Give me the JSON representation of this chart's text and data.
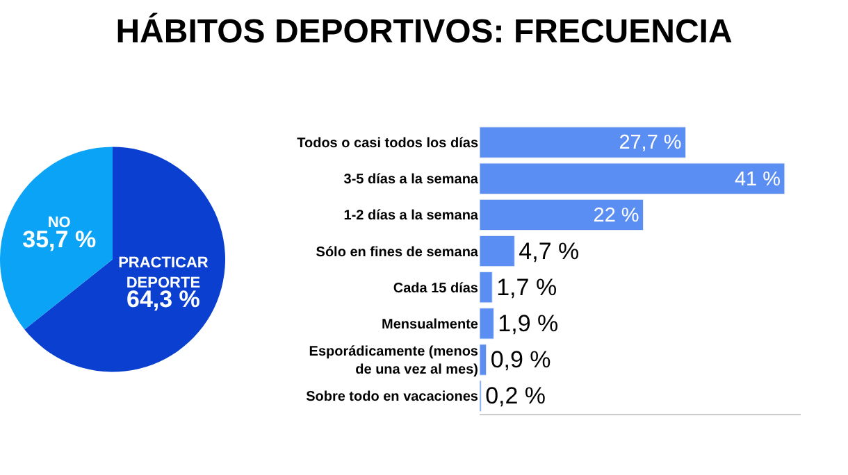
{
  "chart_data": [
    {
      "type": "pie",
      "title": "HÁBITOS DEPORTIVOS: FRECUENCIA",
      "categories": [
        "PRACTICAR DEPORTE",
        "NO"
      ],
      "values": [
        64.3,
        35.7
      ],
      "colors": [
        "#0a3fcf",
        "#0aa3f5"
      ],
      "value_labels": [
        "64,3 %",
        "35,7 %"
      ],
      "legend": false
    },
    {
      "type": "bar",
      "orientation": "horizontal",
      "categories": [
        "Todos o casi todos los días",
        "3-5 días a la semana",
        "1-2 días a la semana",
        "Sólo en fines de semana",
        "Cada 15 días",
        "Mensualmente",
        "Esporádicamente (menos de una vez al mes)",
        "Sobre todo en vacaciones"
      ],
      "values": [
        27.7,
        41,
        22,
        4.7,
        1.7,
        1.9,
        0.9,
        0.2
      ],
      "color": "#5b8ef2",
      "value_labels": [
        "27,7 %",
        "41 %",
        "22 %",
        "4,7 %",
        "1,7 %",
        "1,9 %",
        "0,9 %",
        "0,2 %"
      ],
      "legend": false
    }
  ]
}
